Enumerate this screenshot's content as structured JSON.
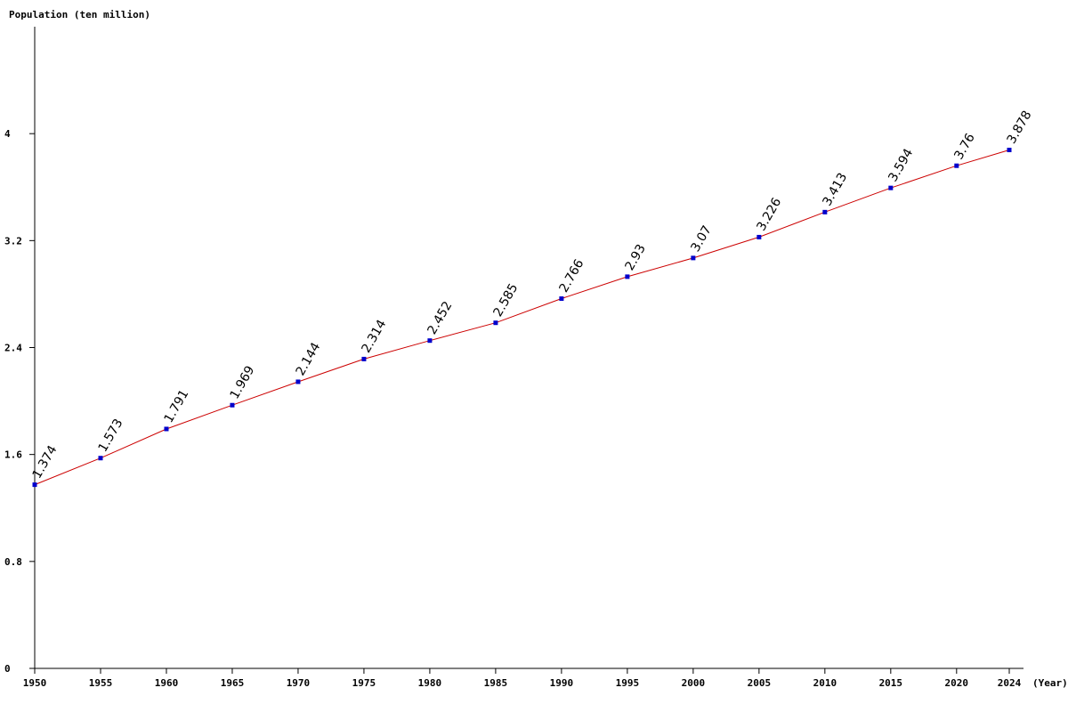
{
  "chart_data": {
    "type": "line",
    "ylabel": "Population (ten million)",
    "xlabel": "(Year)",
    "x": [
      1950,
      1955,
      1960,
      1965,
      1970,
      1975,
      1980,
      1985,
      1990,
      1995,
      2000,
      2005,
      2010,
      2015,
      2020,
      2024
    ],
    "series": [
      {
        "values": [
          1.374,
          1.573,
          1.791,
          1.969,
          2.144,
          2.314,
          2.452,
          2.585,
          2.766,
          2.93,
          3.07,
          3.226,
          3.413,
          3.594,
          3.76,
          3.878
        ],
        "labels": [
          "1.374",
          "1.573",
          "1.791",
          "1.969",
          "2.144",
          "2.314",
          "2.452",
          "2.585",
          "2.766",
          "2.93",
          "3.07",
          "3.226",
          "3.413",
          "3.594",
          "3.76",
          "3.878"
        ]
      }
    ],
    "xticks": [
      "1950",
      "1955",
      "1960",
      "1965",
      "1970",
      "1975",
      "1980",
      "1985",
      "1990",
      "1995",
      "2000",
      "2005",
      "2010",
      "2015",
      "2020",
      "2024"
    ],
    "yticks": [
      "0",
      "0.8",
      "1.6",
      "2.4",
      "3.2",
      "4"
    ],
    "ytick_values": [
      0,
      0.8,
      1.6,
      2.4,
      3.2,
      4
    ],
    "ylim": [
      0,
      4.8
    ],
    "xlim": [
      1950,
      2024
    ],
    "grid": false,
    "colors": {
      "line": "#cc0000",
      "marker": "#0000cc",
      "axis": "#000000"
    }
  }
}
